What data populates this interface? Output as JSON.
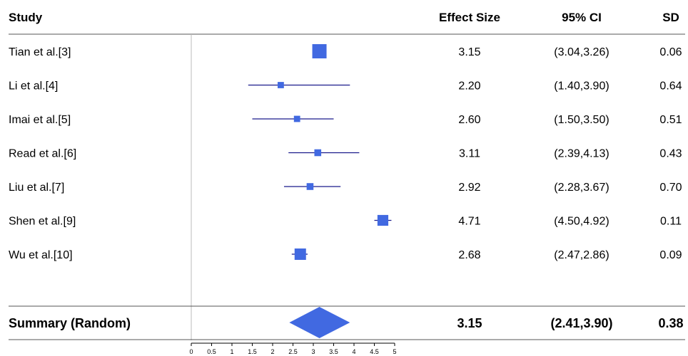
{
  "chart_data": {
    "type": "forest",
    "columns": {
      "study": "Study",
      "effect_size": "Effect Size",
      "ci": "95% CI",
      "sd": "SD"
    },
    "studies": [
      {
        "name": "Tian et al.[3]",
        "effect": 3.15,
        "effect_label": "3.15",
        "lo": 3.04,
        "hi": 3.26,
        "ci_label": "(3.04,3.26)",
        "sd_label": "0.06",
        "weight": 1.0
      },
      {
        "name": "Li et al.[4]",
        "effect": 2.2,
        "effect_label": "2.20",
        "lo": 1.4,
        "hi": 3.9,
        "ci_label": "(1.40,3.90)",
        "sd_label": "0.64",
        "weight": 0.3
      },
      {
        "name": "Imai et al.[5]",
        "effect": 2.6,
        "effect_label": "2.60",
        "lo": 1.5,
        "hi": 3.5,
        "ci_label": "(1.50,3.50)",
        "sd_label": "0.51",
        "weight": 0.3
      },
      {
        "name": "Read et al.[6]",
        "effect": 3.11,
        "effect_label": "3.11",
        "lo": 2.39,
        "hi": 4.13,
        "ci_label": "(2.39,4.13)",
        "sd_label": "0.43",
        "weight": 0.35
      },
      {
        "name": "Liu et al.[7]",
        "effect": 2.92,
        "effect_label": "2.92",
        "lo": 2.28,
        "hi": 3.67,
        "ci_label": "(2.28,3.67)",
        "sd_label": "0.70",
        "weight": 0.35
      },
      {
        "name": "Shen et al.[9]",
        "effect": 4.71,
        "effect_label": "4.71",
        "lo": 4.5,
        "hi": 4.92,
        "ci_label": "(4.50,4.92)",
        "sd_label": "0.11",
        "weight": 0.7
      },
      {
        "name": "Wu et al.[10]",
        "effect": 2.68,
        "effect_label": "2.68",
        "lo": 2.47,
        "hi": 2.86,
        "ci_label": "(2.47,2.86)",
        "sd_label": "0.09",
        "weight": 0.75
      }
    ],
    "summary": {
      "name": "Summary (Random)",
      "effect": 3.15,
      "effect_label": "3.15",
      "lo": 2.41,
      "hi": 3.9,
      "ci_label": "(2.41,3.90)",
      "sd_label": "0.38"
    },
    "xlim": [
      0,
      5
    ],
    "ticks": [
      "0",
      "0.5",
      "1",
      "1.5",
      "2",
      "2.5",
      "3",
      "3.5",
      "4",
      "4.5",
      "5"
    ],
    "tick_values": [
      0,
      0.5,
      1,
      1.5,
      2,
      2.5,
      3,
      3.5,
      4,
      4.5,
      5
    ],
    "marker_color": "#4169E1",
    "line_color": "#1A1A8C"
  }
}
